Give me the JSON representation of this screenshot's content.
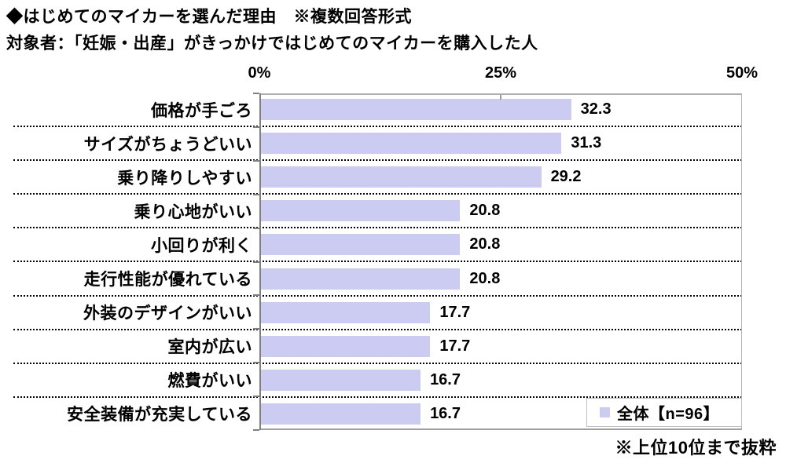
{
  "title": "◆はじめてのマイカーを選んだ理由　※複数回答形式",
  "subtitle": "対象者：「妊娠・出産」がきっかけではじめてのマイカーを購入した人",
  "footnote": "※上位10位まで抜粋",
  "legend": {
    "label": "全体【n=96】",
    "marker_color": "#ccccf2"
  },
  "colors": {
    "bar": "#ccccf2",
    "axis": "#808080",
    "frame": "#adadad",
    "text": "#000000"
  },
  "chart_data": {
    "type": "bar",
    "orientation": "horizontal",
    "title": "はじめてのマイカーを選んだ理由（複数回答形式）",
    "categories": [
      "価格が手ごろ",
      "サイズがちょうどいい",
      "乗り降りしやすい",
      "乗り心地がいい",
      "小回りが利く",
      "走行性能が優れている",
      "外装のデザインがいい",
      "室内が広い",
      "燃費がいい",
      "安全装備が充実している"
    ],
    "values": [
      32.3,
      31.3,
      29.2,
      20.8,
      20.8,
      20.8,
      17.7,
      17.7,
      16.7,
      16.7
    ],
    "xlim": [
      0,
      50
    ],
    "x_ticks": [
      "0%",
      "25%",
      "50%"
    ],
    "value_labels_shown": true,
    "grid": "dotted-row-separators",
    "legend": "全体【n=96】",
    "legend_position": "inside-bottom-right",
    "bar_color": "#ccccf2"
  }
}
